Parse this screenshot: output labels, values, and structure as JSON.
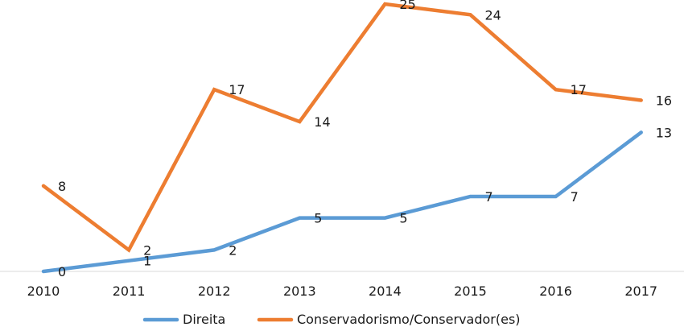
{
  "chart_data": {
    "type": "line",
    "title": "",
    "xlabel": "",
    "ylabel": "",
    "x": [
      "2010",
      "2011",
      "2012",
      "2013",
      "2014",
      "2015",
      "2016",
      "2017"
    ],
    "ylim": [
      0,
      25
    ],
    "grid": false,
    "legend_position": "bottom",
    "series": [
      {
        "name": "Direita",
        "color": "#5B9BD5",
        "values": [
          0,
          1,
          2,
          5,
          5,
          7,
          7,
          13
        ]
      },
      {
        "name": "Conservadorismo/Conservador(es)",
        "color": "#ED7D31",
        "values": [
          8,
          2,
          17,
          14,
          25,
          24,
          17,
          16
        ]
      }
    ]
  }
}
